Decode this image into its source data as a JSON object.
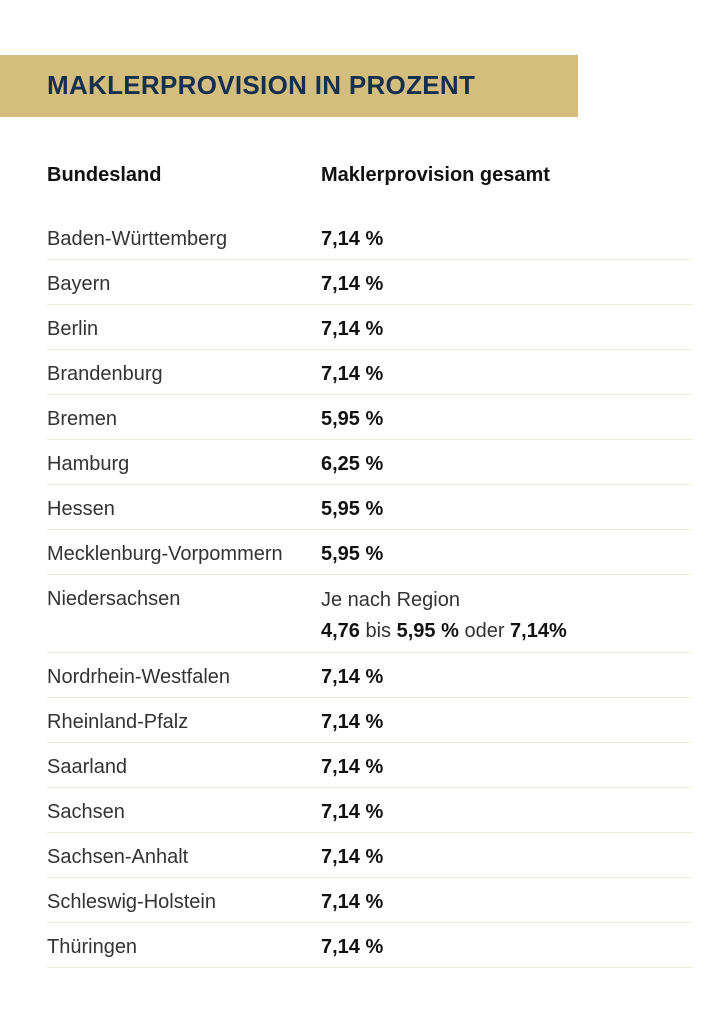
{
  "title": "MAKLERPROVISION IN PROZENT",
  "colors": {
    "banner": "#d4be7d",
    "title": "#15304f",
    "divider": "#f1e8d6"
  },
  "headers": {
    "state": "Bundesland",
    "value": "Maklerprovision gesamt"
  },
  "rows": [
    {
      "state": "Baden-Württemberg",
      "value": "7,14 %"
    },
    {
      "state": "Bayern",
      "value": "7,14 %"
    },
    {
      "state": "Berlin",
      "value": "7,14 %"
    },
    {
      "state": "Brandenburg",
      "value": "7,14 %"
    },
    {
      "state": "Bremen",
      "value": "5,95 %"
    },
    {
      "state": "Hamburg",
      "value": "6,25 %"
    },
    {
      "state": "Hessen",
      "value": "5,95 %"
    },
    {
      "state": "Mecklenburg-Vorpommern",
      "value": "5,95 %"
    }
  ],
  "niedersachsen": {
    "state": "Niedersachsen",
    "line1": "Je nach Region",
    "v1": "4,76",
    "t1": " bis ",
    "v2": "5,95 %",
    "t2": " oder ",
    "v3": "7,14%"
  },
  "rows2": [
    {
      "state": "Nordrhein-Westfalen",
      "value": "7,14 %"
    },
    {
      "state": "Rheinland-Pfalz",
      "value": "7,14 %"
    },
    {
      "state": "Saarland",
      "value": "7,14 %"
    },
    {
      "state": "Sachsen",
      "value": "7,14 %"
    },
    {
      "state": "Sachsen-Anhalt",
      "value": "7,14 %"
    },
    {
      "state": "Schleswig-Holstein",
      "value": "7,14 %"
    },
    {
      "state": "Thüringen",
      "value": "7,14 %"
    }
  ]
}
